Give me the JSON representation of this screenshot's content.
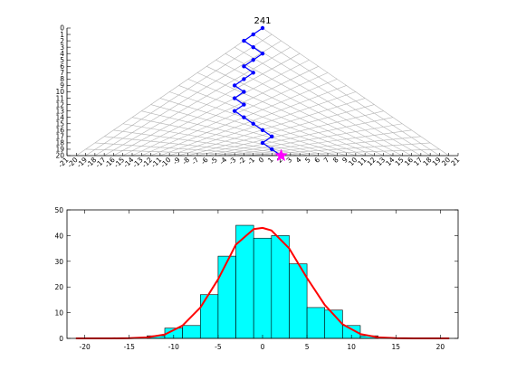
{
  "chart_data": [
    {
      "type": "scatter",
      "subtype": "galton-board-random-walk",
      "title": "241",
      "xlim": [
        -21,
        21
      ],
      "ylim": [
        0,
        20
      ],
      "y_reversed": true,
      "xticks": [
        -21,
        -20,
        -19,
        -18,
        -17,
        -16,
        -15,
        -14,
        -13,
        -12,
        -11,
        -10,
        -9,
        -8,
        -7,
        -6,
        -5,
        -4,
        -3,
        -2,
        -1,
        0,
        1,
        2,
        3,
        4,
        5,
        6,
        7,
        8,
        9,
        10,
        11,
        12,
        13,
        14,
        15,
        16,
        17,
        18,
        19,
        20,
        21
      ],
      "yticks": [
        0,
        1,
        2,
        3,
        4,
        5,
        6,
        7,
        8,
        9,
        10,
        11,
        12,
        13,
        14,
        15,
        16,
        17,
        18,
        19,
        20
      ],
      "grid": "triangular lattice",
      "path": {
        "x": [
          0,
          -1,
          -2,
          -1,
          0,
          -1,
          -2,
          -1,
          -2,
          -3,
          -2,
          -3,
          -2,
          -3,
          -2,
          -1,
          0,
          1,
          0,
          1,
          2
        ],
        "y": [
          0,
          1,
          2,
          3,
          4,
          5,
          6,
          7,
          8,
          9,
          10,
          11,
          12,
          13,
          14,
          15,
          16,
          17,
          18,
          19,
          20
        ],
        "color": "#0000ff"
      },
      "final_marker": {
        "x": 2,
        "y": 20,
        "shape": "star",
        "color": "#ff00ff"
      }
    },
    {
      "type": "bar",
      "subtype": "histogram-with-normal-fit",
      "xlim": [
        -22,
        22
      ],
      "ylim": [
        0,
        50
      ],
      "xticks": [
        -20,
        -15,
        -10,
        -5,
        0,
        5,
        10,
        15,
        20
      ],
      "yticks": [
        0,
        10,
        20,
        30,
        40,
        50
      ],
      "bin_width": 2,
      "bin_centers": [
        -20,
        -18,
        -16,
        -14,
        -12,
        -10,
        -8,
        -6,
        -4,
        -2,
        0,
        2,
        4,
        6,
        8,
        10,
        12,
        14,
        16,
        18,
        20
      ],
      "counts": [
        0,
        0,
        0,
        0,
        1,
        4,
        5,
        17,
        32,
        44,
        39,
        40,
        29,
        12,
        11,
        5,
        1,
        0,
        0,
        0,
        0
      ],
      "bar_color": "#00ffff",
      "fit_curve": {
        "color": "#ff0000",
        "x": [
          -21,
          -19,
          -17,
          -15,
          -13,
          -11,
          -9,
          -7,
          -5,
          -3,
          -1,
          0,
          1,
          3,
          5,
          7,
          9,
          11,
          13,
          15,
          17,
          19,
          21
        ],
        "y": [
          0.0,
          0.0,
          0.0,
          0.1,
          0.4,
          1.5,
          5.0,
          12.0,
          23.0,
          36.5,
          42.5,
          43.0,
          42.0,
          35.0,
          23.5,
          13.0,
          5.5,
          1.7,
          0.4,
          0.1,
          0.0,
          0.0,
          0.0
        ]
      }
    }
  ]
}
